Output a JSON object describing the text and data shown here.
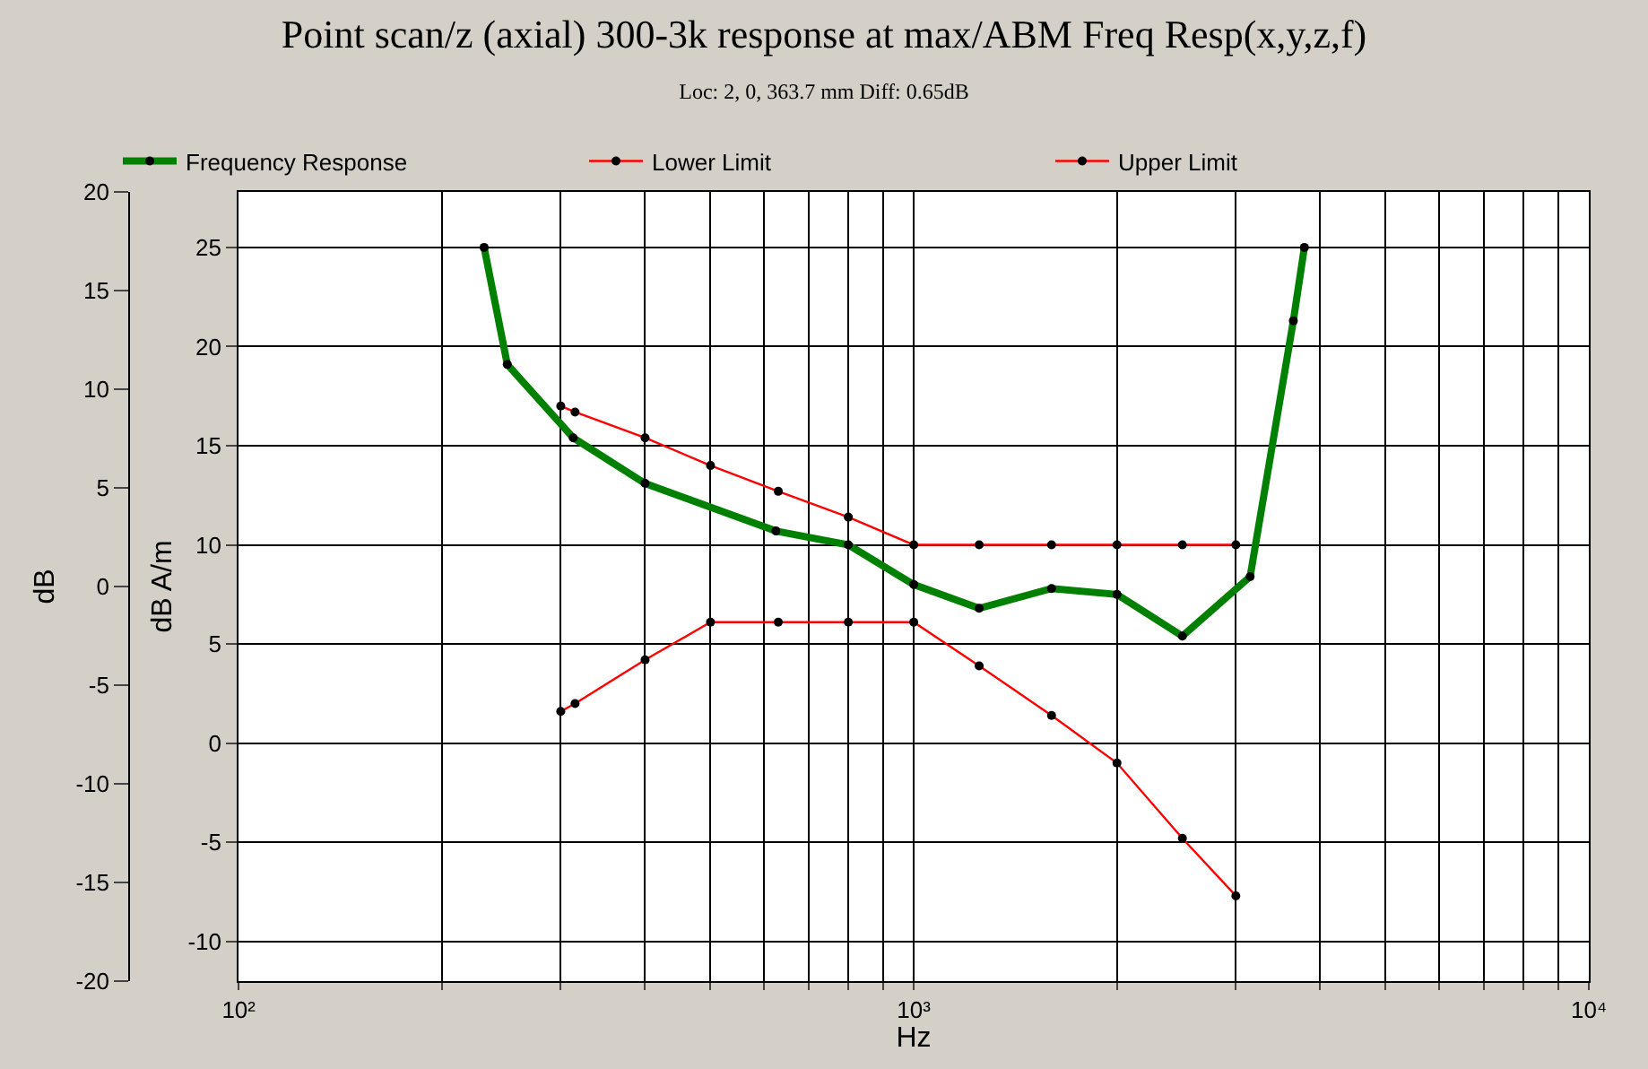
{
  "chart_data": {
    "type": "line",
    "title": "Point scan/z (axial) 300-3k response at max/ABM Freq Resp(x,y,z,f)",
    "subtitle": "Loc: 2, 0, 363.7 mm Diff: 0.65dB",
    "xlabel": "Hz",
    "ylabel": "dB A/m",
    "y2label": "dB",
    "log": "x",
    "xlim": [
      100,
      10000
    ],
    "xticks": [
      {
        "value": 100,
        "label": "10²"
      },
      {
        "value": 200,
        "label": null
      },
      {
        "value": 300,
        "label": null
      },
      {
        "value": 400,
        "label": null
      },
      {
        "value": 500,
        "label": null
      },
      {
        "value": 600,
        "label": null
      },
      {
        "value": 700,
        "label": null
      },
      {
        "value": 800,
        "label": null
      },
      {
        "value": 900,
        "label": null
      },
      {
        "value": 1000,
        "label": "10³"
      },
      {
        "value": 2000,
        "label": null
      },
      {
        "value": 3000,
        "label": null
      },
      {
        "value": 4000,
        "label": null
      },
      {
        "value": 5000,
        "label": null
      },
      {
        "value": 6000,
        "label": null
      },
      {
        "value": 7000,
        "label": null
      },
      {
        "value": 8000,
        "label": null
      },
      {
        "value": 9000,
        "label": null
      },
      {
        "value": 10000,
        "label": "10⁴"
      }
    ],
    "ylim": [
      -12,
      27.8
    ],
    "yticks": [
      -10,
      -5,
      0,
      5,
      10,
      15,
      20,
      25
    ],
    "y2lim": [
      -20,
      20
    ],
    "y2ticks": [
      -20,
      -15,
      -10,
      -5,
      0,
      5,
      10,
      15,
      20
    ],
    "grid": true,
    "legend": "top",
    "marker": "circle",
    "series": [
      {
        "name": "Frequency Response",
        "color": "#008000",
        "x": [
          231,
          250,
          313,
          400,
          625,
          800,
          1000,
          1250,
          1600,
          2000,
          2500,
          3150,
          3650,
          3790
        ],
        "values": [
          25,
          19.1,
          15.4,
          13.1,
          10.7,
          10.0,
          8.0,
          6.8,
          7.8,
          7.5,
          5.4,
          8.4,
          21.3,
          25
        ]
      },
      {
        "name": "Lower Limit",
        "color": "#ff0000",
        "x": [
          300,
          315,
          400,
          500,
          630,
          800,
          1000,
          1250,
          1600,
          2000,
          2500,
          3000
        ],
        "values": [
          1.6,
          2.0,
          4.2,
          6.1,
          6.1,
          6.1,
          6.1,
          3.9,
          1.4,
          -1.0,
          -4.8,
          -7.7
        ]
      },
      {
        "name": "Upper Limit",
        "color": "#ff0000",
        "x": [
          300,
          315,
          400,
          500,
          630,
          800,
          1000,
          1250,
          1600,
          2000,
          2500,
          3000
        ],
        "values": [
          17.0,
          16.7,
          15.4,
          14.0,
          12.7,
          11.4,
          10.0,
          10.0,
          10.0,
          10.0,
          10.0,
          10.0
        ]
      }
    ]
  }
}
